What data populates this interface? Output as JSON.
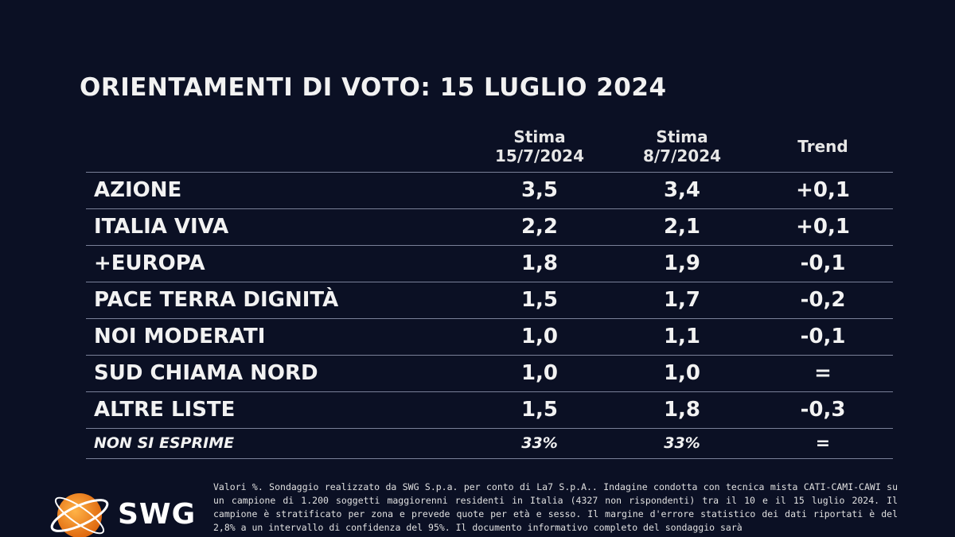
{
  "title": "ORIENTAMENTI DI VOTO: 15 LUGLIO 2024",
  "chart_data": {
    "type": "table",
    "title": "ORIENTAMENTI DI VOTO: 15 LUGLIO 2024",
    "columns": [
      {
        "line1": "Stima",
        "line2": "15/7/2024"
      },
      {
        "line1": "Stima",
        "line2": "8/7/2024"
      },
      {
        "line1": "Trend",
        "line2": ""
      }
    ],
    "rows": [
      {
        "party": "AZIONE",
        "stima_15": "3,5",
        "stima_8": "3,4",
        "trend": "+0,1"
      },
      {
        "party": "ITALIA VIVA",
        "stima_15": "2,2",
        "stima_8": "2,1",
        "trend": "+0,1"
      },
      {
        "party": "+EUROPA",
        "stima_15": "1,8",
        "stima_8": "1,9",
        "trend": "-0,1"
      },
      {
        "party": "PACE TERRA DIGNITÀ",
        "stima_15": "1,5",
        "stima_8": "1,7",
        "trend": "-0,2"
      },
      {
        "party": "NOI MODERATI",
        "stima_15": "1,0",
        "stima_8": "1,1",
        "trend": "-0,1"
      },
      {
        "party": "SUD CHIAMA NORD",
        "stima_15": "1,0",
        "stima_8": "1,0",
        "trend": "="
      },
      {
        "party": "ALTRE LISTE",
        "stima_15": "1,5",
        "stima_8": "1,8",
        "trend": "-0,3"
      },
      {
        "party": "NON SI ESPRIME",
        "stima_15": "33%",
        "stima_8": "33%",
        "trend": "="
      }
    ]
  },
  "logo": {
    "text": "SWG",
    "accent": "#f28c1e"
  },
  "footnote": "Valori %. Sondaggio realizzato da SWG S.p.a. per conto di La7 S.p.A.. Indagine condotta con tecnica mista CATI-CAMI-CAWI su un campione di 1.200 soggetti maggiorenni residenti in Italia (4327 non rispondenti) tra il 10 e il 15 luglio 2024. Il campione è stratificato per zona e prevede quote per età e sesso. Il margine d'errore statistico dei dati riportati è del 2,8% a un intervallo di confidenza del 95%. Il documento informativo completo del sondaggio sarà",
  "colors": {
    "background": "#0b1024",
    "text": "#ffffff",
    "rule": "#7a8098"
  }
}
